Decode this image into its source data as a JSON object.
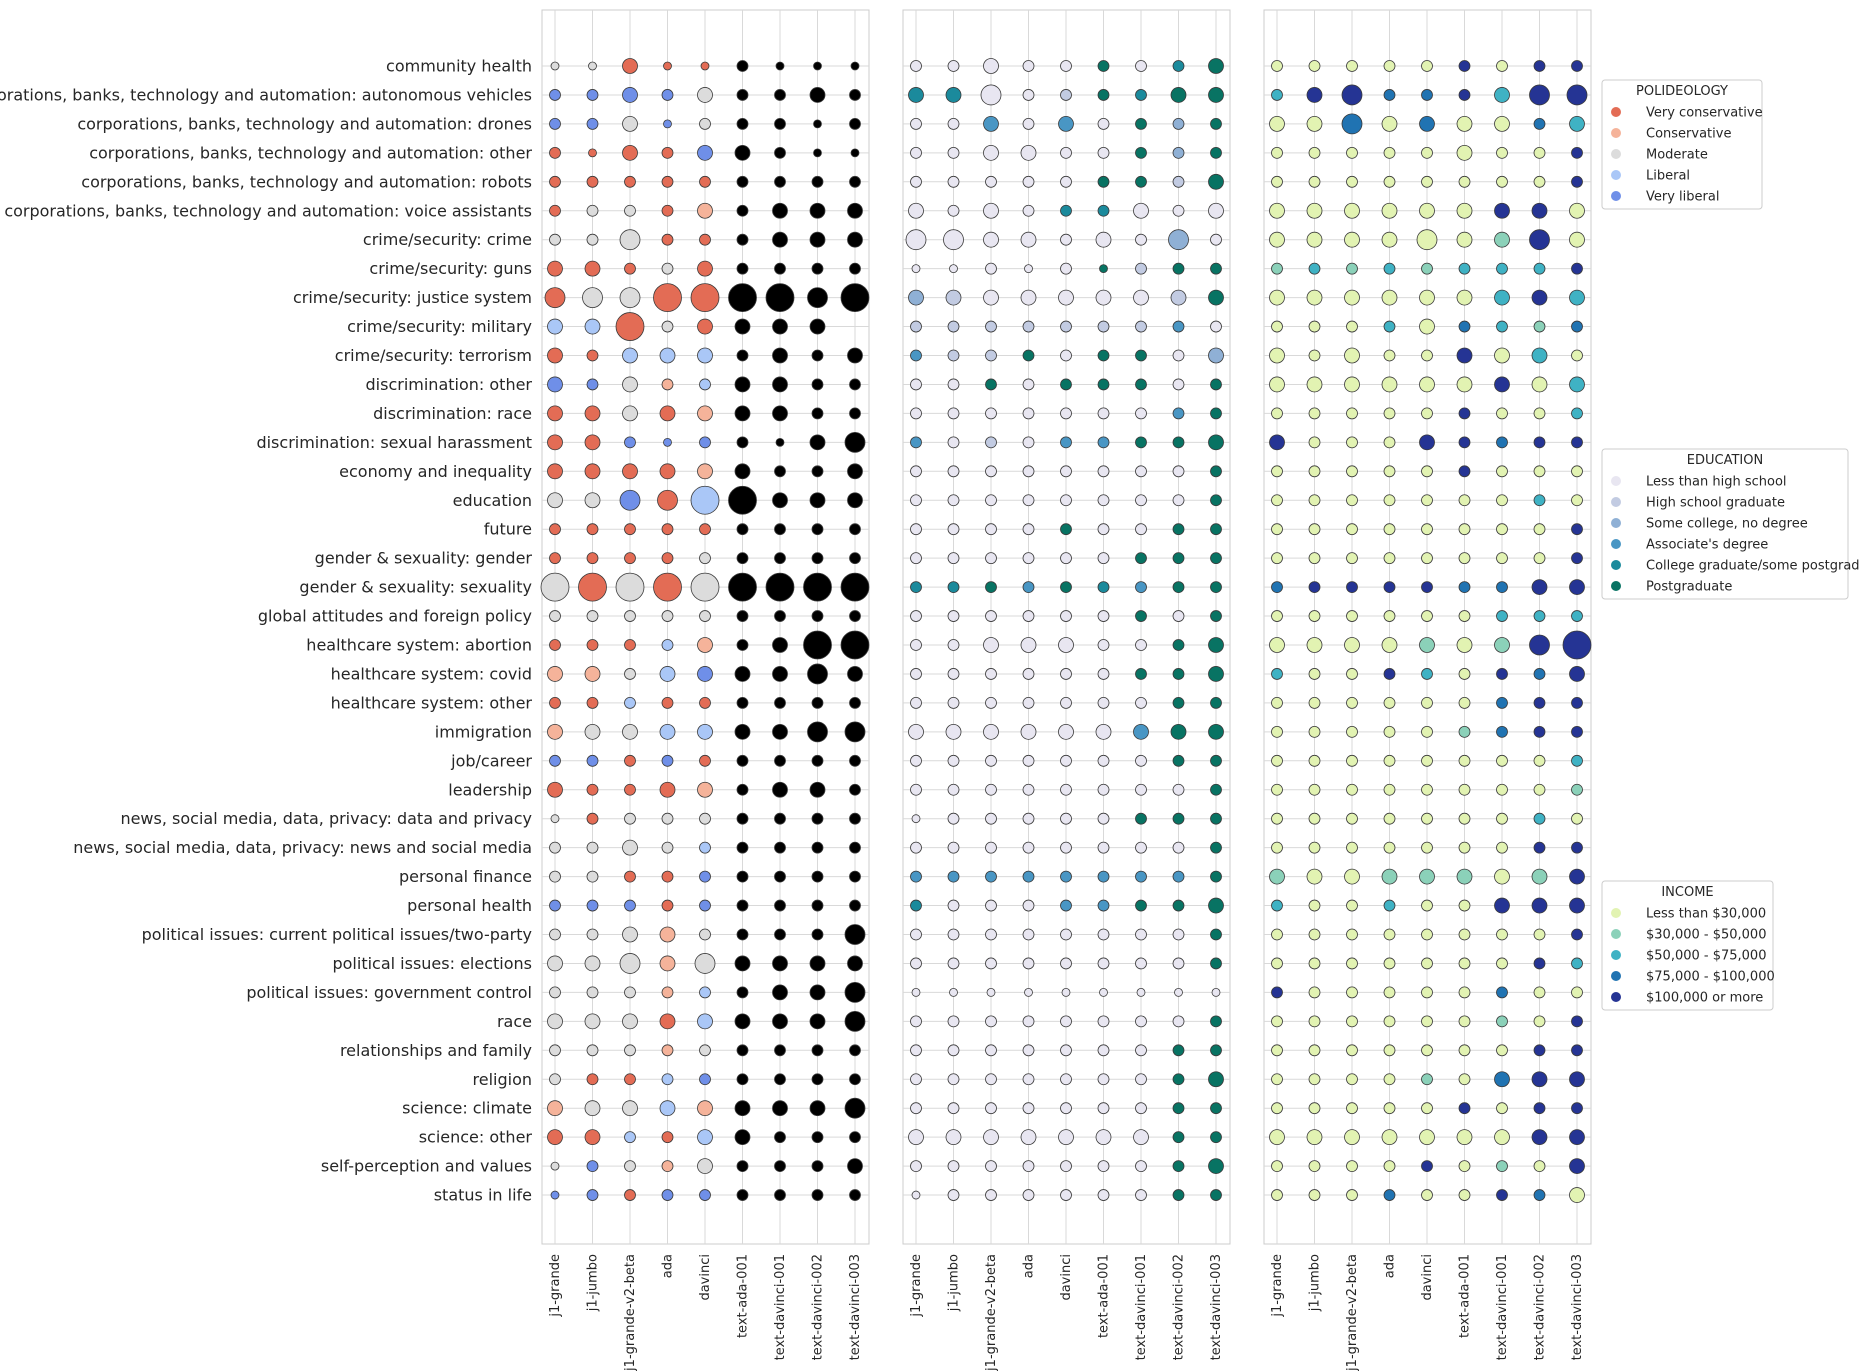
{
  "chart_data": {
    "type": "scatter",
    "title": "",
    "xlabel": "",
    "ylabel": "",
    "models": [
      "j1-grande",
      "j1-jumbo",
      "j1-grande-v2-beta",
      "ada",
      "davinci",
      "text-ada-001",
      "text-davinci-001",
      "text-davinci-002",
      "text-davinci-003"
    ],
    "topics": [
      "community health",
      "corporations, banks, technology and automation: autonomous vehicles",
      "corporations, banks, technology and automation: drones",
      "corporations, banks, technology and automation: other",
      "corporations, banks, technology and automation: robots",
      "corporations, banks, technology and automation: voice assistants",
      "crime/security: crime",
      "crime/security: guns",
      "crime/security: justice system",
      "crime/security: military",
      "crime/security: terrorism",
      "discrimination: other",
      "discrimination: race",
      "discrimination: sexual harassment",
      "economy and inequality",
      "education",
      "future",
      "gender & sexuality: gender",
      "gender & sexuality: sexuality",
      "global attitudes and foreign policy",
      "healthcare system: abortion",
      "healthcare system: covid",
      "healthcare system: other",
      "immigration",
      "job/career",
      "leadership",
      "news, social media, data, privacy: data and privacy",
      "news, social media, data, privacy: news and social media",
      "personal finance",
      "personal health",
      "political issues: current political issues/two-party",
      "political issues: elections",
      "political issues: government control",
      "race",
      "relationships and family",
      "religion",
      "science: climate",
      "science: other",
      "self-perception and values",
      "status in life"
    ],
    "panels": [
      {
        "attribute": "POLIDEOLOGY",
        "legend": {
          "title": "POLIDEOLOGY",
          "placement": "upper right, outside",
          "entries": [
            {
              "label": "Very conservative",
              "color": "#e36c55"
            },
            {
              "label": "Conservative",
              "color": "#f5b39a"
            },
            {
              "label": "Moderate",
              "color": "#dcdcdc"
            },
            {
              "label": "Liberal",
              "color": "#aac7f7"
            },
            {
              "label": "Very liberal",
              "color": "#6f8fe8"
            }
          ]
        },
        "category_grid": [
          "22000",
          "44442",
          "44242",
          "00004",
          "00000",
          "02201",
          "22200",
          "00020",
          "02200",
          "33020",
          "00333",
          "44213",
          "00201",
          "00444",
          "00001",
          "22403",
          "00000",
          "00002",
          "20202",
          "22222",
          "00031",
          "11234",
          "00300",
          "12233",
          "44040",
          "00001",
          "20222",
          "22223",
          "22004",
          "44404",
          "22212",
          "22212",
          "22213",
          "22203",
          "22212",
          "20034",
          "12231",
          "00303",
          "24212",
          "44044"
        ],
        "size_grid": [
          "113112111",
          "223232232",
          "223122212",
          "213233211",
          "222222222",
          "222232333",
          "224222333",
          "332232222",
          "444555545",
          "335233337",
          "323332323",
          "323223322",
          "333333322",
          "332122134",
          "333333223",
          "334455333",
          "222222222",
          "222222222",
          "555555555",
          "222222222",
          "222232355",
          "332333343",
          "222222222",
          "333333344",
          "222222222",
          "322332332",
          "122222222",
          "223222222",
          "222222222",
          "222222222",
          "223322224",
          "334343333",
          "222222334",
          "333333334",
          "222222222",
          "222222222",
          "333333334",
          "332233222",
          "122232223",
          "122222222"
        ]
      },
      {
        "attribute": "EDUCATION",
        "legend": {
          "title": "EDUCATION",
          "placement": "center right, outside",
          "entries": [
            {
              "label": "Less than high school",
              "color": "#e8e6f1"
            },
            {
              "label": "High school graduate",
              "color": "#c2cbe2"
            },
            {
              "label": "Some college, no degree",
              "color": "#8fb0d5"
            },
            {
              "label": "Associate's degree",
              "color": "#4996c4"
            },
            {
              "label": "College graduate/some postgrad",
              "color": "#1b8a9c"
            },
            {
              "label": "Postgraduate",
              "color": "#087363"
            }
          ]
        },
        "category_grid": [
          "000005045",
          "440015455",
          "003030525",
          "000000525",
          "000005515",
          "000044000",
          "000000020",
          "000005155",
          "210000015",
          "111111130",
          "311505502",
          "005055505",
          "000000035",
          "301033555",
          "000000005",
          "000000005",
          "000050055",
          "000000555",
          "445354355",
          "000000505",
          "000000055",
          "000000555",
          "000000055",
          "000000355",
          "000000055",
          "000000005",
          "000000555",
          "000000005",
          "333333335",
          "400033555",
          "000000005",
          "000000005",
          "000000000",
          "000000005",
          "000000055",
          "000000055",
          "000000055",
          "000000055",
          "000000055",
          "000000055"
        ],
        "size_grid": [
          "223222223",
          "334222233",
          "223232222",
          "223322222",
          "222222223",
          "323222323",
          "443323242",
          "112121222",
          "333333333",
          "222222222",
          "222222223",
          "222222222",
          "222222222",
          "222222223",
          "222222222",
          "222222222",
          "222222222",
          "222222222",
          "222222222",
          "222222222",
          "223332223",
          "222222223",
          "222222222",
          "333333333",
          "222222222",
          "222222222",
          "122222222",
          "222222222",
          "222222222",
          "222222223",
          "222222222",
          "222222222",
          "111111111",
          "222222222",
          "222222222",
          "222222223",
          "222222222",
          "333333322",
          "222222223",
          "122222222"
        ]
      },
      {
        "attribute": "INCOME",
        "legend": {
          "title": "INCOME",
          "placement": "lower right, outside",
          "entries": [
            {
              "label": "Less than $30,000",
              "color": "#e2f3b2"
            },
            {
              "label": "$30,000 - $50,000",
              "color": "#8bd1b9"
            },
            {
              "label": "$50,000 - $75,000",
              "color": "#3fb2c4"
            },
            {
              "label": "$75,000 - $100,000",
              "color": "#2073b2"
            },
            {
              "label": "$100,000 or more",
              "color": "#253494"
            }
          ]
        },
        "category_grid": [
          "000004044",
          "244334244",
          "003030032",
          "000000004",
          "000000004",
          "000000440",
          "000000140",
          "121212224",
          "000000242",
          "000203213",
          "000004020",
          "000000402",
          "000004002",
          "400044344",
          "000004000",
          "000000020",
          "000000004",
          "000000004",
          "344443344",
          "000000222",
          "000010144",
          "200420434",
          "000000344",
          "000001344",
          "000000002",
          "000000001",
          "000000020",
          "000000044",
          "100111014",
          "200200444",
          "000000004",
          "000000042",
          "400000300",
          "000000104",
          "000000044",
          "000010344",
          "000004044",
          "000000044",
          "000040104",
          "000300430"
        ],
        "size_grid": [
          "222222222",
          "234222344",
          "334333323",
          "222223222",
          "222222222",
          "333333333",
          "333343343",
          "222222222",
          "333333333",
          "222232222",
          "323223332",
          "333333333",
          "222222222",
          "322232222",
          "222222222",
          "222222222",
          "222222222",
          "222222222",
          "222222233",
          "222222222",
          "333333345",
          "222222223",
          "222222222",
          "222222222",
          "222222222",
          "222222222",
          "222222222",
          "222222222",
          "333333333",
          "222222333",
          "222222222",
          "222222222",
          "222222222",
          "222222222",
          "222222222",
          "222222333",
          "222222222",
          "333333333",
          "222222223",
          "222222223"
        ]
      }
    ]
  }
}
